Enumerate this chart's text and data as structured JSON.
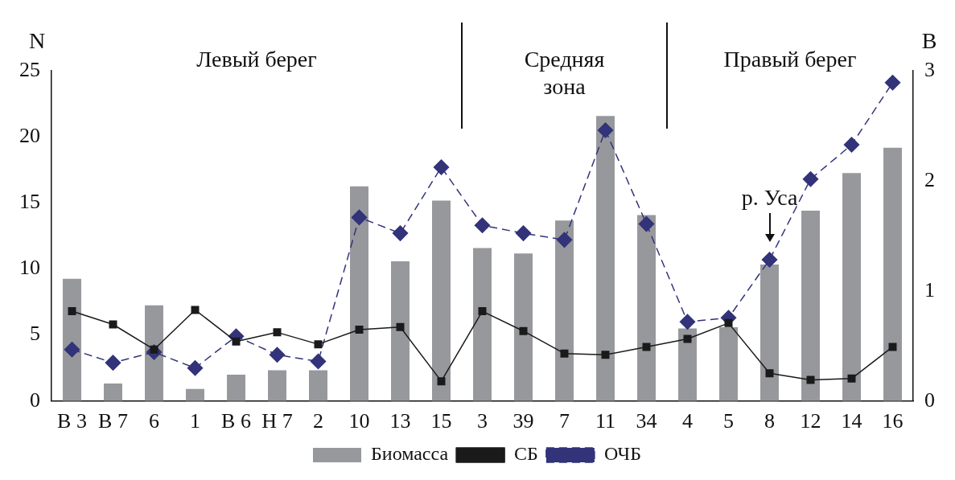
{
  "chart_data": {
    "type": "bar",
    "ylabel": "N",
    "y2label": "B",
    "categories": [
      "В 3",
      "В 7",
      "6",
      "1",
      "В 6",
      "Н 7",
      "2",
      "10",
      "13",
      "15",
      "3",
      "39",
      "7",
      "11",
      "34",
      "4",
      "5",
      "8",
      "12",
      "14",
      "16"
    ],
    "series": [
      {
        "name": "Биомасса",
        "axis": "y2",
        "color": "#97989c",
        "values": [
          1.11,
          0.16,
          0.87,
          0.11,
          0.24,
          0.28,
          0.28,
          1.95,
          1.27,
          1.82,
          1.39,
          1.34,
          1.64,
          2.59,
          1.69,
          0.66,
          0.67,
          1.24,
          1.73,
          2.07,
          2.3
        ]
      },
      {
        "name": "СБ",
        "type": "line",
        "axis": "y",
        "color": "#1a1a1a",
        "marker": "square",
        "line_style": "solid",
        "values": [
          6.8,
          5.8,
          3.9,
          6.9,
          4.5,
          5.2,
          4.3,
          5.4,
          5.6,
          1.5,
          6.8,
          5.3,
          3.6,
          3.5,
          4.1,
          4.7,
          5.9,
          2.1,
          1.6,
          1.7,
          4.1
        ]
      },
      {
        "name": "ОЧБ",
        "type": "line",
        "axis": "y",
        "color": "#33337a",
        "marker": "diamond",
        "line_style": "dashed",
        "values": [
          3.9,
          2.9,
          3.7,
          2.5,
          4.9,
          3.5,
          3.0,
          13.9,
          12.7,
          17.7,
          13.3,
          12.7,
          12.2,
          20.5,
          13.4,
          6.0,
          6.3,
          10.7,
          16.8,
          19.4,
          24.1
        ]
      }
    ],
    "ylim": [
      0,
      25
    ],
    "yticks": [
      0,
      5,
      10,
      15,
      20,
      25
    ],
    "y2lim": [
      0,
      3
    ],
    "y2ticks": [
      0,
      1,
      2,
      3
    ],
    "grid": false,
    "legend": "bottom",
    "annotations": [
      "Левый берег",
      "Средняя\nзона",
      "Правый берег",
      {
        "text": "р. Уса",
        "x": "8",
        "y": 10.7
      }
    ]
  }
}
